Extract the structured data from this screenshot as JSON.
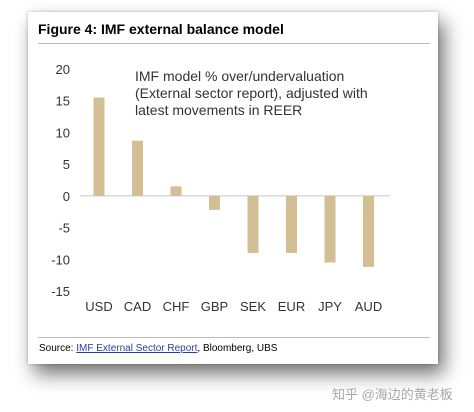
{
  "figure": {
    "title": "Figure 4: IMF external balance model"
  },
  "chart_data": {
    "type": "bar",
    "title": "Figure 4: IMF external balance model",
    "annotation": [
      "IMF model % over/undervaluation",
      "(External sector report), adjusted with",
      "latest movements in REER"
    ],
    "categories": [
      "USD",
      "CAD",
      "CHF",
      "GBP",
      "SEK",
      "EUR",
      "JPY",
      "AUD"
    ],
    "values": [
      15.5,
      8.7,
      1.5,
      -2.2,
      -9.0,
      -9.0,
      -10.5,
      -11.2
    ],
    "ylim": [
      -15,
      20
    ],
    "yticks": [
      20,
      15,
      10,
      5,
      0,
      -5,
      -10,
      -15
    ],
    "ytick_labels": [
      "20",
      "15",
      "10",
      "5",
      "0",
      "-5",
      "-10",
      "-15"
    ],
    "xlabel": "",
    "ylabel": "",
    "grid": false,
    "bar_color": "#d2bf94"
  },
  "source": {
    "prefix": "Source: ",
    "link_text": "IMF External Sector Report",
    "suffix": ", Bloomberg, UBS"
  },
  "watermark": "知乎 @海边的黄老板"
}
